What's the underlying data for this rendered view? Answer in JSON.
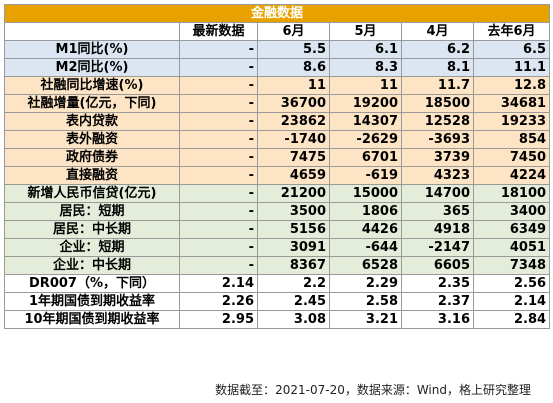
{
  "table": {
    "title": "金融数据",
    "headers": [
      "",
      "最新数据",
      "6月",
      "5月",
      "4月",
      "去年6月"
    ],
    "rows": [
      {
        "label": "M1同比(%)",
        "latest": "-",
        "jun": "5.5",
        "may": "6.1",
        "apr": "6.2",
        "ly_jun": "6.5",
        "group": "blue"
      },
      {
        "label": "M2同比(%)",
        "latest": "-",
        "jun": "8.6",
        "may": "8.3",
        "apr": "8.1",
        "ly_jun": "11.1",
        "group": "blue"
      },
      {
        "label": "社融同比增速(%)",
        "latest": "-",
        "jun": "11",
        "may": "11",
        "apr": "11.7",
        "ly_jun": "12.8",
        "group": "orange"
      },
      {
        "label": "社融增量(亿元，下同)",
        "latest": "-",
        "jun": "36700",
        "may": "19200",
        "apr": "18500",
        "ly_jun": "34681",
        "group": "orange"
      },
      {
        "label": "表内贷款",
        "latest": "-",
        "jun": "23862",
        "may": "14307",
        "apr": "12528",
        "ly_jun": "19233",
        "group": "orange"
      },
      {
        "label": "表外融资",
        "latest": "-",
        "jun": "-1740",
        "may": "-2629",
        "apr": "-3693",
        "ly_jun": "854",
        "group": "orange"
      },
      {
        "label": "政府债券",
        "latest": "-",
        "jun": "7475",
        "may": "6701",
        "apr": "3739",
        "ly_jun": "7450",
        "group": "orange"
      },
      {
        "label": "直接融资",
        "latest": "-",
        "jun": "4659",
        "may": "-619",
        "apr": "4323",
        "ly_jun": "4224",
        "group": "orange"
      },
      {
        "label": "新增人民币信贷(亿元)",
        "latest": "-",
        "jun": "21200",
        "may": "15000",
        "apr": "14700",
        "ly_jun": "18100",
        "group": "green"
      },
      {
        "label": "居民：短期",
        "latest": "-",
        "jun": "3500",
        "may": "1806",
        "apr": "365",
        "ly_jun": "3400",
        "group": "green"
      },
      {
        "label": "居民：中长期",
        "latest": "-",
        "jun": "5156",
        "may": "4426",
        "apr": "4918",
        "ly_jun": "6349",
        "group": "green"
      },
      {
        "label": "企业：短期",
        "latest": "-",
        "jun": "3091",
        "may": "-644",
        "apr": "-2147",
        "ly_jun": "4051",
        "group": "green"
      },
      {
        "label": "企业：中长期",
        "latest": "-",
        "jun": "8367",
        "may": "6528",
        "apr": "6605",
        "ly_jun": "7348",
        "group": "green"
      },
      {
        "label": "DR007（%，下同）",
        "latest": "2.14",
        "jun": "2.2",
        "may": "2.29",
        "apr": "2.35",
        "ly_jun": "2.56",
        "group": "white"
      },
      {
        "label": "1年期国债到期收益率",
        "latest": "2.26",
        "jun": "2.45",
        "may": "2.58",
        "apr": "2.37",
        "ly_jun": "2.14",
        "group": "white"
      },
      {
        "label": "10年期国债到期收益率",
        "latest": "2.95",
        "jun": "3.08",
        "may": "3.21",
        "apr": "3.16",
        "ly_jun": "2.84",
        "group": "white"
      }
    ]
  },
  "footnote": "数据截至：2021-07-20，数据来源：Wind，格上研究整理",
  "colors": {
    "title_bg": "#e8a200",
    "blue_rows": "#dce6f2",
    "orange_rows": "#fce4c4",
    "green_rows": "#e4edd9",
    "white_rows": "#ffffff"
  }
}
